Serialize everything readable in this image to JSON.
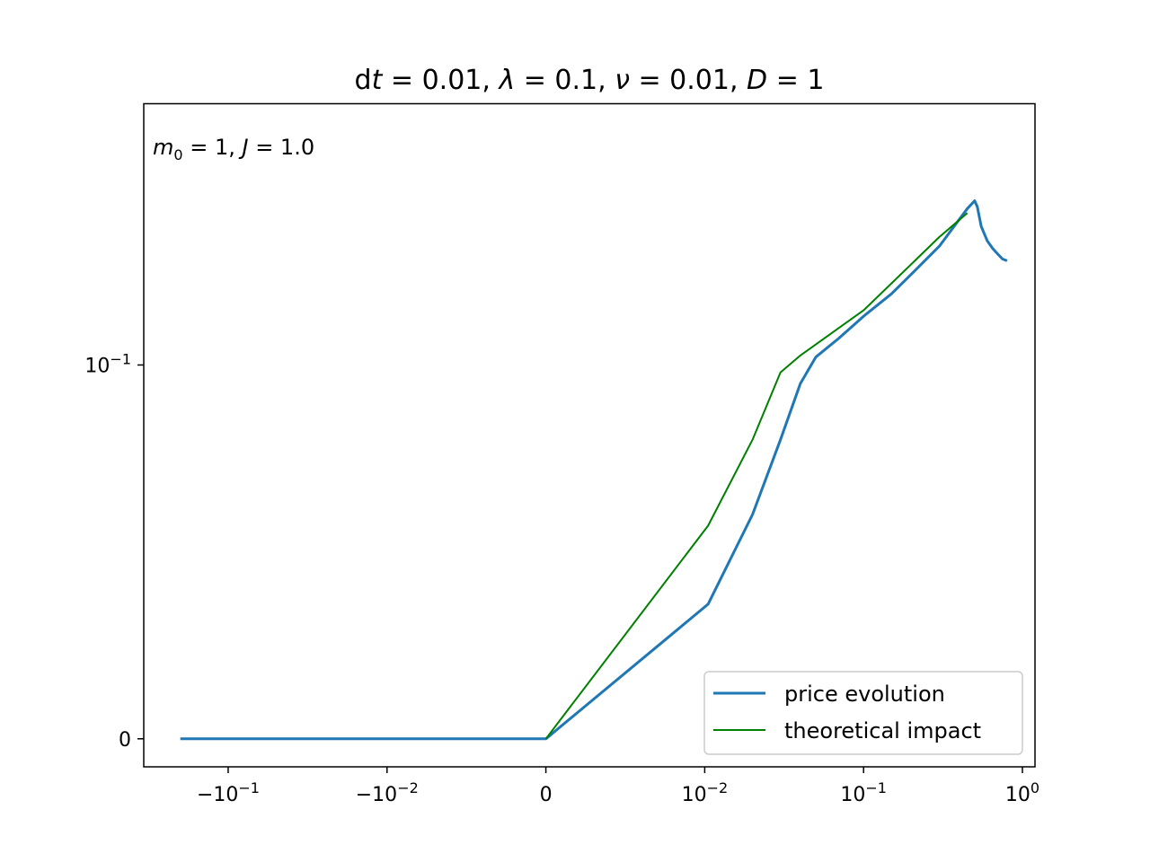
{
  "chart_data": {
    "type": "line",
    "title": "d𝑡 = 0.01, 𝜆 = 0.1, 𝜈 = 0.01, 𝐷 = 1",
    "title_parts": {
      "d": "d",
      "t": "t",
      "t_eq": " = 0.01, ",
      "lambda": "λ",
      "lambda_eq": " = 0.1, ",
      "nu": "ν",
      "nu_eq": " = 0.01, ",
      "D": "D",
      "D_eq": " = 1"
    },
    "annotation": "𝑚₀ = 1, 𝐽 = 1.0",
    "annotation_parts": {
      "m": "m",
      "sub": "0",
      "m_eq": " = 1, ",
      "J": "J",
      "J_eq": " = 1.0"
    },
    "xscale": "symlog",
    "yscale": "symlog",
    "linthresh_x": 0.01,
    "linthresh_y": 0.1,
    "xlim": [
      -0.34,
      1.2
    ],
    "ylim": [
      -0.0075,
      0.5
    ],
    "x_ticks": [
      {
        "value": -0.1,
        "base": "−10",
        "exp": "−1"
      },
      {
        "value": -0.01,
        "base": "−10",
        "exp": "−2"
      },
      {
        "value": 0,
        "base": "0",
        "exp": ""
      },
      {
        "value": 0.01,
        "base": "10",
        "exp": "−2"
      },
      {
        "value": 0.1,
        "base": "10",
        "exp": "−1"
      },
      {
        "value": 1,
        "base": "10",
        "exp": "0"
      }
    ],
    "y_ticks": [
      {
        "value": 0,
        "base": "0",
        "exp": ""
      },
      {
        "value": 0.1,
        "base": "10",
        "exp": "−1"
      }
    ],
    "legend_position": "lower right",
    "series": [
      {
        "name": "price evolution",
        "color": "#1f77b4",
        "points": [
          [
            -0.2,
            0
          ],
          [
            -0.1,
            0
          ],
          [
            -0.01,
            0
          ],
          [
            0,
            0
          ],
          [
            0.0105,
            0.036
          ],
          [
            0.02,
            0.06
          ],
          [
            0.03,
            0.08
          ],
          [
            0.04,
            0.095
          ],
          [
            0.05,
            0.105
          ],
          [
            0.07,
            0.118
          ],
          [
            0.1,
            0.135
          ],
          [
            0.15,
            0.155
          ],
          [
            0.2,
            0.175
          ],
          [
            0.3,
            0.208
          ],
          [
            0.45,
            0.262
          ],
          [
            0.5,
            0.275
          ],
          [
            0.52,
            0.265
          ],
          [
            0.55,
            0.235
          ],
          [
            0.6,
            0.215
          ],
          [
            0.65,
            0.205
          ],
          [
            0.7,
            0.198
          ],
          [
            0.75,
            0.192
          ],
          [
            0.8,
            0.19
          ]
        ]
      },
      {
        "name": "theoretical impact",
        "color": "#008000",
        "points": [
          [
            0,
            0
          ],
          [
            0.0105,
            0.057
          ],
          [
            0.02,
            0.08
          ],
          [
            0.03,
            0.098
          ],
          [
            0.04,
            0.106
          ],
          [
            0.1,
            0.14
          ],
          [
            0.3,
            0.22
          ],
          [
            0.45,
            0.255
          ]
        ]
      }
    ]
  }
}
